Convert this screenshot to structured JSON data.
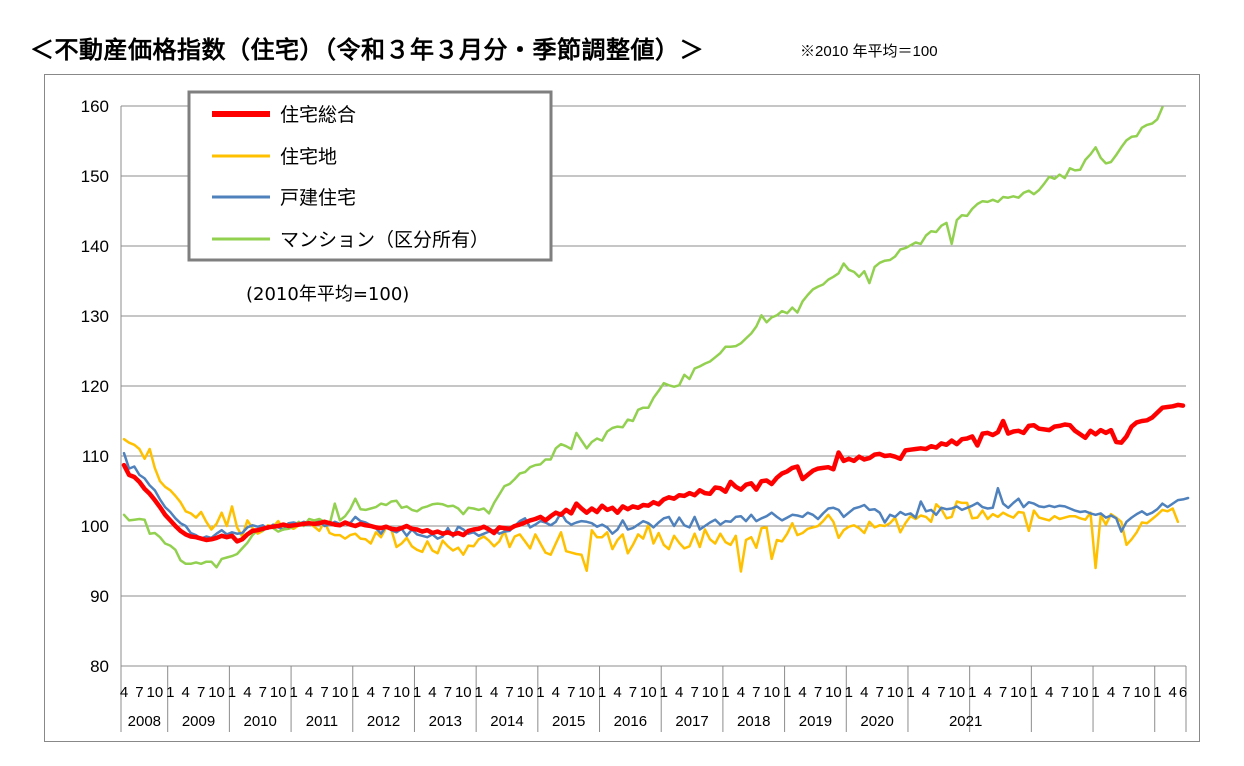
{
  "header": {
    "title": "＜不動産価格指数（住宅）（令和３年３月分・季節調整値）＞",
    "note": "※2010 年平均＝100"
  },
  "chart_data": {
    "type": "line",
    "inner_note": "(2010年平均=100)",
    "ylim": [
      80,
      160
    ],
    "yticks": [
      80,
      90,
      100,
      110,
      120,
      130,
      140,
      150,
      160
    ],
    "x_start": "2008-04",
    "x_end": "2021-03",
    "month_tick_labels": [
      "1",
      "4",
      "7",
      "10"
    ],
    "years": [
      "2008",
      "2009",
      "2010",
      "2011",
      "2012",
      "2013",
      "2014",
      "2015",
      "2016",
      "2017",
      "2018",
      "2019",
      "2020",
      "2021"
    ],
    "grid": true,
    "legend_position": "top-left",
    "series": [
      {
        "name": "住宅総合",
        "color": "#ff0000",
        "values": [
          108.7,
          107.3,
          107.0,
          106.3,
          105.3,
          104.6,
          103.7,
          102.7,
          101.6,
          100.8,
          100.0,
          99.3,
          98.8,
          98.5,
          98.4,
          98.2,
          98.0,
          98.1,
          98.3,
          98.6,
          98.4,
          98.6,
          97.8,
          98.1,
          98.8,
          99.3,
          99.4,
          99.6,
          99.8,
          99.9,
          100.0,
          100.2,
          100.0,
          100.1,
          100.2,
          100.3,
          100.4,
          100.3,
          100.4,
          100.6,
          100.4,
          100.2,
          100.1,
          100.5,
          100.2,
          100.0,
          100.3,
          100.1,
          100.0,
          99.8,
          99.7,
          99.9,
          99.6,
          99.5,
          99.7,
          100.0,
          99.6,
          99.5,
          99.2,
          99.4,
          99.0,
          99.2,
          98.9,
          99.1,
          98.8,
          99.0,
          98.7,
          99.3,
          99.5,
          99.6,
          99.9,
          99.5,
          99.0,
          99.8,
          99.7,
          99.6,
          100.0,
          100.2,
          100.5,
          100.8,
          101.0,
          101.3,
          100.8,
          101.4,
          101.9,
          101.6,
          102.3,
          101.8,
          103.2,
          102.5,
          101.9,
          102.5,
          102.0,
          102.9,
          102.3,
          102.6,
          101.9,
          102.8,
          102.4,
          102.8,
          102.6,
          103.0,
          102.9,
          103.4,
          103.1,
          103.8,
          104.1,
          103.9,
          104.4,
          104.3,
          104.7,
          104.4,
          105.1,
          104.7,
          104.6,
          105.5,
          105.4,
          104.9,
          106.3,
          105.6,
          105.2,
          105.9,
          106.1,
          105.2,
          106.4,
          106.5,
          106.0,
          106.9,
          107.5,
          107.8,
          108.3,
          108.5,
          106.7,
          107.3,
          107.9,
          108.2,
          108.3,
          108.4,
          108.1,
          110.5,
          109.3,
          109.6,
          109.3,
          109.9,
          109.5,
          109.7,
          110.2,
          110.3,
          110.0,
          110.1,
          109.9,
          109.6,
          110.8,
          110.9,
          111.0,
          111.1,
          111.0,
          111.4,
          111.2,
          111.8,
          111.6,
          112.2,
          111.7,
          112.4,
          112.5,
          112.8,
          111.5,
          113.2,
          113.3,
          113.0,
          113.4,
          115.0,
          113.2,
          113.5,
          113.6,
          113.3,
          114.3,
          114.4,
          113.9,
          113.8,
          113.7,
          114.2,
          114.3,
          114.5,
          114.4,
          113.6,
          113.1,
          112.6,
          113.6,
          113.1,
          113.7,
          113.3,
          113.7,
          112.0,
          111.9,
          112.8,
          114.2,
          114.8,
          115.0,
          115.1,
          115.5,
          116.2,
          116.9,
          117.0,
          117.1,
          117.3,
          117.2
        ]
      },
      {
        "name": "住宅地",
        "color": "#ffc000",
        "values": [
          112.4,
          111.9,
          111.6,
          111.0,
          109.6,
          111.0,
          108.3,
          106.4,
          105.6,
          105.1,
          104.3,
          103.4,
          102.1,
          101.8,
          101.2,
          102.0,
          100.6,
          99.5,
          100.3,
          101.9,
          100.0,
          102.8,
          99.8,
          98.5,
          100.8,
          99.7,
          98.9,
          99.3,
          100.1,
          99.9,
          100.7,
          99.6,
          99.9,
          99.6,
          100.1,
          100.4,
          100.4,
          99.9,
          99.3,
          100.6,
          99.0,
          98.7,
          98.7,
          98.2,
          98.7,
          98.9,
          98.2,
          98.1,
          97.5,
          99.1,
          98.4,
          99.8,
          99.5,
          97.0,
          97.5,
          98.3,
          97.1,
          96.6,
          96.3,
          97.8,
          96.5,
          96.1,
          97.9,
          97.1,
          96.5,
          96.9,
          95.9,
          97.2,
          97.1,
          98.1,
          98.5,
          97.9,
          97.1,
          97.8,
          99.3,
          97.0,
          98.5,
          98.8,
          97.8,
          96.8,
          98.8,
          97.5,
          96.2,
          95.9,
          97.5,
          99.1,
          96.4,
          96.2,
          96.0,
          95.9,
          93.6,
          99.4,
          98.4,
          98.4,
          99.1,
          96.7,
          98.0,
          98.8,
          96.1,
          97.3,
          98.8,
          98.2,
          100.2,
          97.5,
          99.0,
          97.3,
          96.7,
          98.6,
          97.6,
          96.8,
          97.1,
          98.9,
          97.0,
          99.5,
          98.1,
          97.5,
          98.9,
          97.7,
          97.3,
          98.6,
          93.5,
          98.0,
          98.4,
          96.9,
          99.7,
          99.8,
          95.3,
          98.0,
          97.8,
          98.9,
          100.4,
          98.7,
          99.0,
          99.6,
          99.8,
          100.0,
          100.7,
          101.6,
          100.6,
          98.3,
          99.4,
          99.9,
          100.1,
          99.7,
          99.0,
          100.6,
          99.8,
          100.1,
          100.0,
          100.4,
          101.2,
          99.1,
          100.4,
          101.4,
          101.0,
          101.5,
          101.3,
          100.6,
          103.1,
          102.4,
          101.1,
          101.3,
          103.5,
          103.3,
          103.3,
          101.1,
          101.2,
          102.2,
          101.0,
          101.7,
          101.3,
          101.9,
          101.5,
          101.2,
          102.0,
          101.9,
          99.3,
          102.2,
          101.2,
          101.0,
          100.8,
          101.4,
          101.0,
          101.2,
          101.4,
          101.4,
          101.1,
          100.9,
          101.9,
          94.0,
          101.5,
          100.2,
          101.7,
          101.2,
          100.6,
          97.3,
          98.1,
          99.1,
          100.5,
          100.4,
          101.0,
          101.6,
          102.3,
          102.1,
          102.5,
          100.6
        ]
      },
      {
        "name": "戸建住宅",
        "color": "#4f81bd",
        "values": [
          110.4,
          108.2,
          108.5,
          107.3,
          106.8,
          105.8,
          105.1,
          103.8,
          102.7,
          102.0,
          101.1,
          100.4,
          100.0,
          99.0,
          98.7,
          98.2,
          98.5,
          98.3,
          98.9,
          99.4,
          98.8,
          99.1,
          98.9,
          99.0,
          99.8,
          100.1,
          99.9,
          100.1,
          99.6,
          100.2,
          99.8,
          99.5,
          100.4,
          100.5,
          100.3,
          100.6,
          100.4,
          100.5,
          100.7,
          100.0,
          100.2,
          100.6,
          100.3,
          100.6,
          100.4,
          101.3,
          100.7,
          100.5,
          100.1,
          99.7,
          98.9,
          100.0,
          99.4,
          99.1,
          99.6,
          98.6,
          99.5,
          98.8,
          98.6,
          98.4,
          98.8,
          98.2,
          98.5,
          99.7,
          98.5,
          99.9,
          99.5,
          98.9,
          99.1,
          98.6,
          98.9,
          99.2,
          99.4,
          98.9,
          99.2,
          99.3,
          100.0,
          100.7,
          101.1,
          99.8,
          100.2,
          100.7,
          100.5,
          100.1,
          100.6,
          101.9,
          100.7,
          100.2,
          100.5,
          100.7,
          100.6,
          100.4,
          99.9,
          100.2,
          99.8,
          98.9,
          99.5,
          100.8,
          99.5,
          99.7,
          100.2,
          100.7,
          100.4,
          99.8,
          100.5,
          101.1,
          101.3,
          100.0,
          101.2,
          100.1,
          99.8,
          101.3,
          99.5,
          100.0,
          100.5,
          100.9,
          100.2,
          100.7,
          100.6,
          101.3,
          101.4,
          100.7,
          101.6,
          100.7,
          101.1,
          101.4,
          101.9,
          101.3,
          100.8,
          101.2,
          101.6,
          101.5,
          101.3,
          101.9,
          101.6,
          101.0,
          101.8,
          102.5,
          102.6,
          102.3,
          101.3,
          101.9,
          102.5,
          102.7,
          103.0,
          102.3,
          102.4,
          101.9,
          100.5,
          101.6,
          101.3,
          102.0,
          101.6,
          101.8,
          101.2,
          103.5,
          102.1,
          102.3,
          101.6,
          102.6,
          102.4,
          102.5,
          102.8,
          102.3,
          102.6,
          102.9,
          103.3,
          102.7,
          102.5,
          102.6,
          105.4,
          103.2,
          102.6,
          103.3,
          103.9,
          102.7,
          103.4,
          103.2,
          102.8,
          102.7,
          102.9,
          102.7,
          102.9,
          102.8,
          102.5,
          102.2,
          102.0,
          102.1,
          101.8,
          101.6,
          101.8,
          101.2,
          101.5,
          101.1,
          99.2,
          100.6,
          101.2,
          101.7,
          102.1,
          101.6,
          101.9,
          102.4,
          103.2,
          102.7,
          103.2,
          103.7,
          103.8,
          104.0
        ]
      },
      {
        "name": "マンション（区分所有）",
        "color": "#92d050",
        "values": [
          101.6,
          100.8,
          100.9,
          101.0,
          100.9,
          98.9,
          99.0,
          98.4,
          97.5,
          97.2,
          96.6,
          95.1,
          94.6,
          94.6,
          94.8,
          94.6,
          94.9,
          94.9,
          94.1,
          95.3,
          95.5,
          95.7,
          96.0,
          96.8,
          97.6,
          98.7,
          99.4,
          99.3,
          100.0,
          99.7,
          99.2,
          99.5,
          99.6,
          99.9,
          100.6,
          100.0,
          101.0,
          100.8,
          101.0,
          100.6,
          100.2,
          103.2,
          100.8,
          101.4,
          102.4,
          103.9,
          102.4,
          102.3,
          102.5,
          102.7,
          103.2,
          103.0,
          103.5,
          103.6,
          102.6,
          102.8,
          102.3,
          102.1,
          102.6,
          102.8,
          103.1,
          103.2,
          103.1,
          102.8,
          102.9,
          102.5,
          101.7,
          102.6,
          102.5,
          102.3,
          102.5,
          101.8,
          103.3,
          104.5,
          105.7,
          106.0,
          106.7,
          107.5,
          107.7,
          108.4,
          108.7,
          108.8,
          109.5,
          109.5,
          111.1,
          111.7,
          111.4,
          111.0,
          113.3,
          112.2,
          111.1,
          112.0,
          112.5,
          112.2,
          113.5,
          114.0,
          114.2,
          114.1,
          115.2,
          115.0,
          116.6,
          116.9,
          116.9,
          118.3,
          119.3,
          120.4,
          120.1,
          119.9,
          120.1,
          121.6,
          121.0,
          122.5,
          122.8,
          123.2,
          123.5,
          124.1,
          124.7,
          125.6,
          125.6,
          125.7,
          126.1,
          126.8,
          127.5,
          128.5,
          130.1,
          129.1,
          129.8,
          130.1,
          130.7,
          130.4,
          131.2,
          130.5,
          132.1,
          133.0,
          133.8,
          134.2,
          134.5,
          135.2,
          135.6,
          136.1,
          137.5,
          136.6,
          136.3,
          135.6,
          136.4,
          134.7,
          137.0,
          137.6,
          137.9,
          138.0,
          138.5,
          139.5,
          139.7,
          140.1,
          140.5,
          140.3,
          141.5,
          142.1,
          142.0,
          142.9,
          143.3,
          140.3,
          143.7,
          144.4,
          144.3,
          145.3,
          146.0,
          146.4,
          146.3,
          146.6,
          146.3,
          147.0,
          146.9,
          147.1,
          146.9,
          147.6,
          147.9,
          147.4,
          148.0,
          148.9,
          149.9,
          149.6,
          150.2,
          149.7,
          151.1,
          150.8,
          150.9,
          152.3,
          153.1,
          154.1,
          152.6,
          151.8,
          152.0,
          153.0,
          154.1,
          155.1,
          155.6,
          155.7,
          156.9,
          157.3,
          157.5,
          158.1,
          159.8
        ]
      }
    ]
  }
}
